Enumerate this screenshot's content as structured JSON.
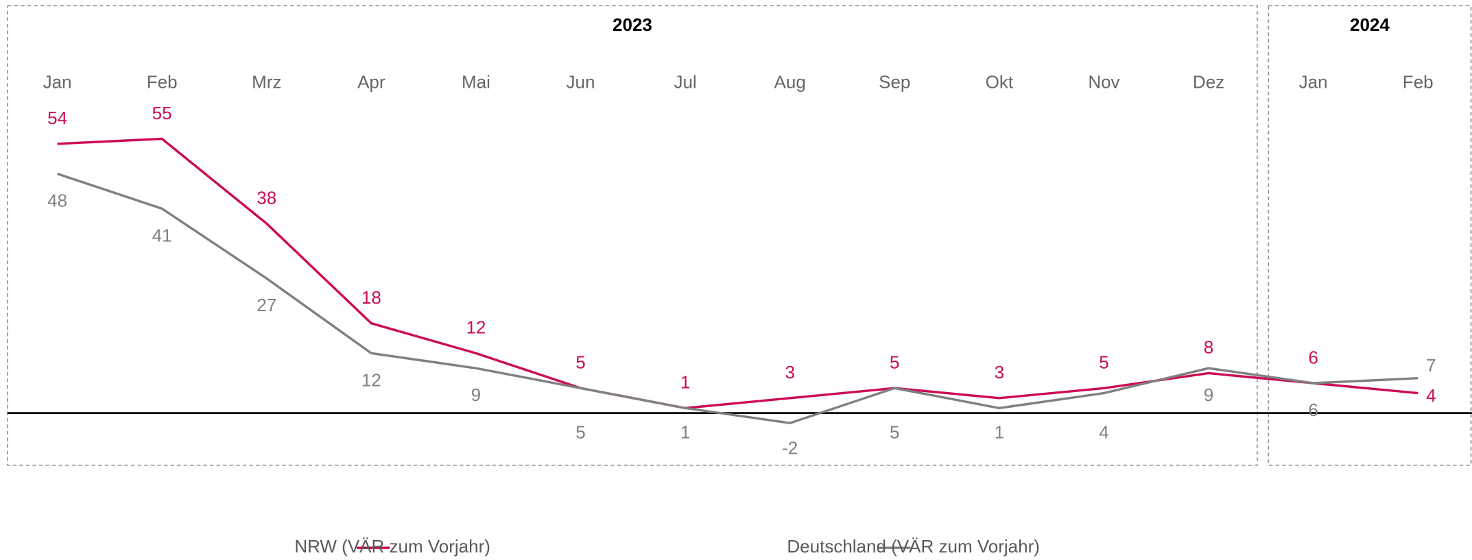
{
  "chart_data": {
    "type": "line",
    "groups": [
      "2023",
      "2024"
    ],
    "categories": [
      "Jan",
      "Feb",
      "Mrz",
      "Apr",
      "Mai",
      "Jun",
      "Jul",
      "Aug",
      "Sep",
      "Okt",
      "Nov",
      "Dez",
      "Jan",
      "Feb"
    ],
    "series": [
      {
        "name": "NRW (VÄR zum Vorjahr)",
        "color": "#cc0a55",
        "values": [
          54,
          55,
          38,
          18,
          12,
          5,
          1,
          3,
          5,
          3,
          5,
          8,
          6,
          4
        ]
      },
      {
        "name": "Deutschland (VÄR zum Vorjahr)",
        "color": "#808080",
        "values": [
          48,
          41,
          27,
          12,
          9,
          5,
          1,
          -2,
          5,
          1,
          4,
          9,
          6,
          7
        ]
      }
    ],
    "legend": "bottom"
  }
}
